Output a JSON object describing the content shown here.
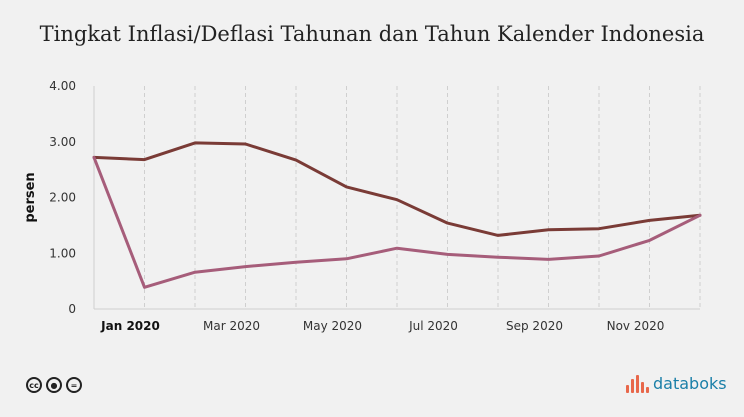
{
  "chart_data": {
    "type": "line",
    "title": "Tingkat Inflasi/Deflasi Tahunan dan Tahun Kalender Indonesia",
    "ylabel": "persen",
    "xlabel": "",
    "ylim": [
      0,
      4
    ],
    "yticks": [
      "0",
      "1.00",
      "2.00",
      "3.00",
      "4.00"
    ],
    "xticks": [
      {
        "index": 1,
        "label": "Jan 2020",
        "bold": true
      },
      {
        "index": 3,
        "label": "Mar 2020",
        "bold": false
      },
      {
        "index": 5,
        "label": "May 2020",
        "bold": false
      },
      {
        "index": 7,
        "label": "Jul 2020",
        "bold": false
      },
      {
        "index": 9,
        "label": "Sep 2020",
        "bold": false
      },
      {
        "index": 11,
        "label": "Nov 2020",
        "bold": false
      }
    ],
    "x": [
      "Dec 2019",
      "Jan 2020",
      "Feb 2020",
      "Mar 2020",
      "Apr 2020",
      "May 2020",
      "Jun 2020",
      "Jul 2020",
      "Aug 2020",
      "Sep 2020",
      "Oct 2020",
      "Nov 2020",
      "Dec 2020"
    ],
    "grid": true,
    "series": [
      {
        "color": "#7a3b36",
        "values": [
          2.72,
          2.68,
          2.98,
          2.96,
          2.67,
          2.19,
          1.96,
          1.54,
          1.32,
          1.42,
          1.44,
          1.59,
          1.68
        ]
      },
      {
        "color": "#a65d7a",
        "values": [
          2.72,
          0.39,
          0.66,
          0.76,
          0.84,
          0.9,
          1.09,
          0.98,
          0.93,
          0.89,
          0.95,
          1.23,
          1.68
        ]
      }
    ]
  },
  "footer": {
    "license_icons": [
      "cc-icon",
      "by-icon",
      "nd-icon"
    ],
    "brand": "databoks",
    "brand_color": "#1a7fa8"
  }
}
